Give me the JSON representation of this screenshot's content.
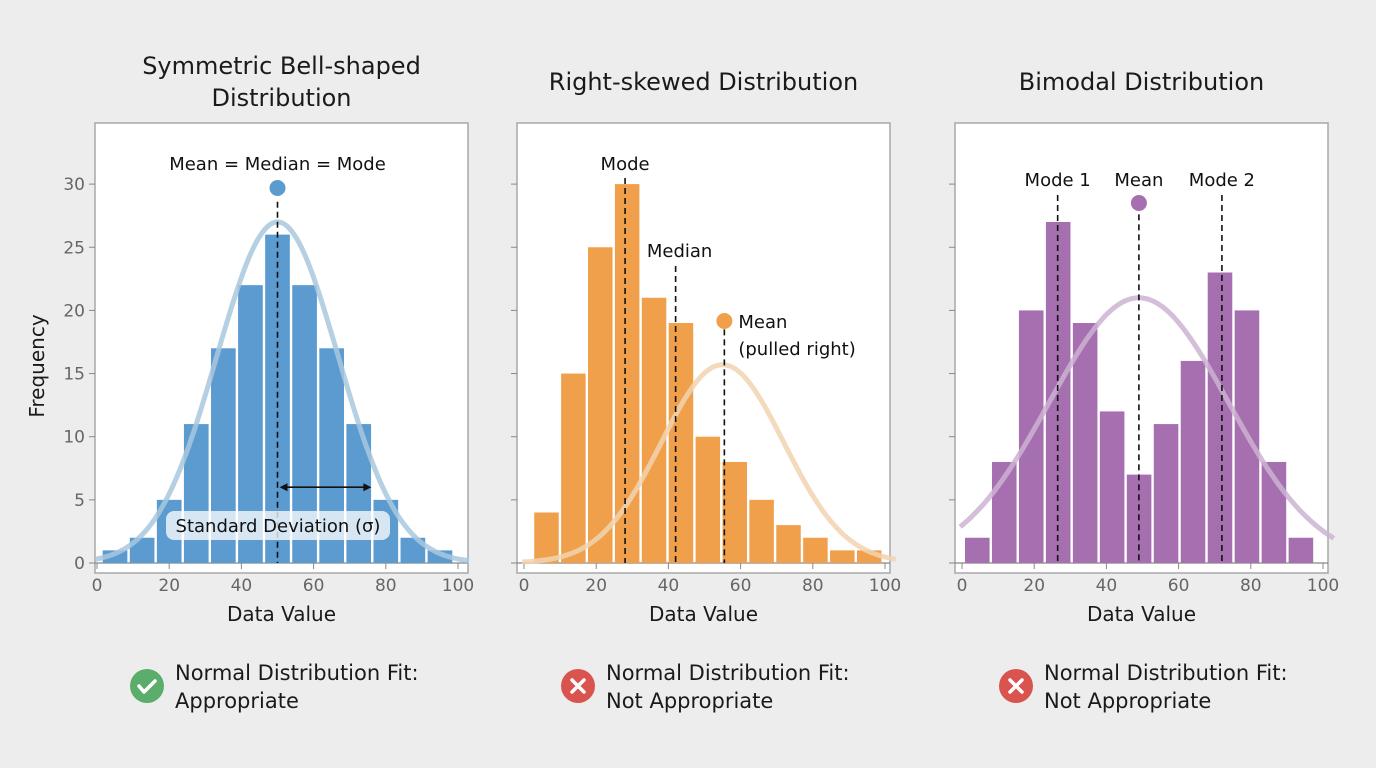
{
  "chart_data": [
    {
      "type": "bar",
      "title": "Symmetric Bell-shaped Distribution",
      "title_lines": [
        "Symmetric Bell-shaped",
        "Distribution"
      ],
      "xlabel": "Data Value",
      "ylabel": "Frequency",
      "xlim": [
        0,
        100
      ],
      "ylim": [
        0,
        33
      ],
      "xticks": [
        "0",
        "20",
        "40",
        "60",
        "80",
        "100"
      ],
      "yticks": [
        "0",
        "5",
        "10",
        "15",
        "20",
        "25",
        "30"
      ],
      "bin_start": 1.25,
      "bin_width": 7.5,
      "values": [
        1,
        2,
        5,
        11,
        17,
        22,
        26,
        22,
        17,
        11,
        5,
        2,
        1
      ],
      "color": "#5b9bd0",
      "curve": {
        "mean": 50,
        "sd": 16.8,
        "peak": 27,
        "color": "#a9c8de"
      },
      "markers": [
        {
          "label": "Mean = Median = Mode",
          "x": 50,
          "dot": true
        }
      ],
      "sd_annotation": {
        "label": "Standard Deviation (σ)",
        "from": 50,
        "to": 76
      },
      "verdict": {
        "line1": "Normal Distribution Fit:",
        "line2": "Appropriate",
        "icon": "check-icon",
        "color": "#5aad6b"
      }
    },
    {
      "type": "bar",
      "title": "Right-skewed Distribution",
      "xlabel": "Data Value",
      "xlim": [
        0,
        100
      ],
      "ylim": [
        0,
        33
      ],
      "xticks": [
        "0",
        "20",
        "40",
        "60",
        "80",
        "100"
      ],
      "bin_start": 2.5,
      "bin_width": 7.45,
      "values": [
        4,
        15,
        25,
        30,
        21,
        19,
        10,
        8,
        5,
        3,
        2,
        1,
        1
      ],
      "color": "#f0a04b",
      "curve": {
        "mean": 55,
        "sd": 17,
        "peak": 15.7,
        "color": "#f2d3b0"
      },
      "markers": [
        {
          "label": "Mode",
          "x": 28
        },
        {
          "label": "Median",
          "x": 42
        },
        {
          "label": "Mean",
          "label2": "(pulled right)",
          "x": 55.5,
          "dot": true
        }
      ],
      "verdict": {
        "line1": "Normal Distribution Fit:",
        "line2": "Not Appropriate",
        "icon": "x-icon",
        "color": "#d9534f"
      }
    },
    {
      "type": "bar",
      "title": "Bimodal Distribution",
      "xlabel": "Data Value",
      "xlim": [
        0,
        100
      ],
      "ylim": [
        0,
        33
      ],
      "xticks": [
        "0",
        "20",
        "40",
        "60",
        "80",
        "100"
      ],
      "bin_start": 0.5,
      "bin_width": 7.47,
      "values": [
        2,
        8,
        20,
        27,
        19,
        12,
        7,
        11,
        16,
        23,
        20,
        8,
        2
      ],
      "color": "#a66fb0",
      "curve": {
        "mean": 49,
        "sd": 24.8,
        "peak": 21,
        "color": "#cdb3d2"
      },
      "markers": [
        {
          "label": "Mode 1",
          "x": 26.5
        },
        {
          "label": "Mean",
          "x": 49,
          "dot": true
        },
        {
          "label": "Mode 2",
          "x": 72
        }
      ],
      "verdict": {
        "line1": "Normal Distribution Fit:",
        "line2": "Not Appropriate",
        "icon": "x-icon",
        "color": "#d9534f"
      }
    }
  ]
}
